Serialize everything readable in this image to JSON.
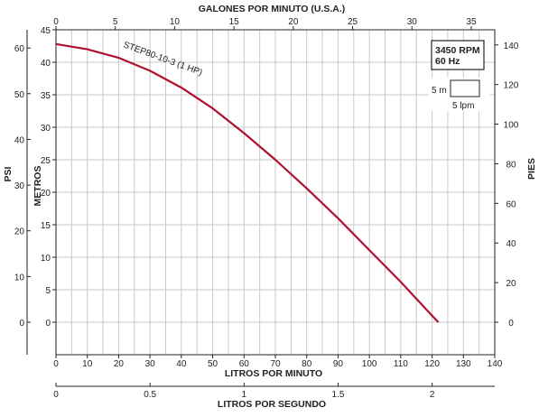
{
  "chart_data": {
    "type": "line",
    "series": [
      {
        "name": "STEP80-10-3 (1 HP)",
        "color": "#b01030",
        "x_lpm": [
          0,
          10,
          20,
          30,
          40,
          50,
          60,
          70,
          80,
          90,
          100,
          110,
          120,
          122
        ],
        "y_m": [
          42.8,
          42,
          40.7,
          38.7,
          36.1,
          32.9,
          29.1,
          25,
          20.6,
          16,
          11.1,
          6.2,
          1,
          0
        ]
      }
    ],
    "axes": {
      "bottom": {
        "label": "LITROS POR MINUTO",
        "min": 0,
        "max": 140,
        "ticks": [
          "0",
          "10",
          "20",
          "30",
          "40",
          "50",
          "60",
          "70",
          "80",
          "90",
          "100",
          "110",
          "120",
          "130",
          "140"
        ]
      },
      "top": {
        "label": "GALONES POR MINUTO (U.S.A.)",
        "min": 0,
        "max": 36.98,
        "ticks": [
          "0",
          "5",
          "10",
          "15",
          "20",
          "25",
          "30",
          "35"
        ]
      },
      "bottom2": {
        "label": "LITROS POR SEGUNDO",
        "min": 0,
        "max": 2.333,
        "ticks": [
          "0",
          "0.5",
          "1",
          "1.5",
          "2"
        ]
      },
      "left_metros": {
        "label": "METROS",
        "min": -5,
        "max": 45,
        "ticks": [
          "0",
          "5",
          "10",
          "15",
          "20",
          "25",
          "30",
          "35",
          "40",
          "45"
        ]
      },
      "left_psi": {
        "label": "PSI",
        "ticks": [
          "0",
          "10",
          "20",
          "30",
          "40",
          "50",
          "60"
        ]
      },
      "right_pies": {
        "label": "PIES",
        "ticks": [
          "0",
          "20",
          "40",
          "60",
          "80",
          "100",
          "120",
          "140"
        ]
      }
    },
    "annotations": {
      "rpm": "3450 RPM",
      "hz": "60 Hz",
      "scale_m": "5 m",
      "scale_lpm": "5 lpm"
    },
    "grid": true
  }
}
